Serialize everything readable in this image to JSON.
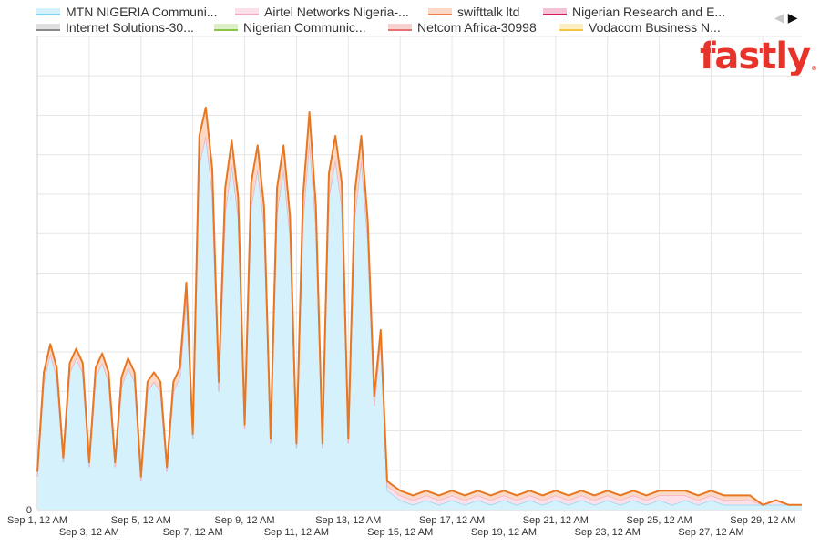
{
  "legend": {
    "items": [
      {
        "label": "MTN NIGERIA Communi...",
        "color": "#7fd4f5",
        "fill": "#d5f1fc"
      },
      {
        "label": "Airtel Networks Nigeria-...",
        "color": "#f4a7c3",
        "fill": "#fbe0ea"
      },
      {
        "label": "swifttalk ltd",
        "color": "#f07d4a",
        "fill": "#fcd9c6"
      },
      {
        "label": "Nigerian Research and E...",
        "color": "#d81b60",
        "fill": "#f5c2d6"
      },
      {
        "label": "Internet Solutions-30...",
        "color": "#8a8a8a",
        "fill": "#e0e0e0"
      },
      {
        "label": "Nigerian Communic...",
        "color": "#8bc34a",
        "fill": "#dcefc6"
      },
      {
        "label": "Netcom Africa-30998",
        "color": "#e57373",
        "fill": "#f8d1d1"
      },
      {
        "label": "Vodacom Business N...",
        "color": "#f4c542",
        "fill": "#fcefc2"
      }
    ],
    "nav_prev_icon": "arrow-left-icon",
    "nav_next_icon": "arrow-right-icon"
  },
  "logo": {
    "text": "fastly",
    "color": "#e8332a",
    "mark": "®"
  },
  "chart_data": {
    "type": "area",
    "stacked": true,
    "x_range": [
      "2023-09-01T00:00",
      "2023-09-30T12:00"
    ],
    "ylim": [
      0,
      1.0
    ],
    "y_tick_labels": [
      "0"
    ],
    "y_gridlines": 12,
    "grid": true,
    "legend_position": "top",
    "x_tick_labels": [
      {
        "date": "2023-09-01T00:00",
        "label": "Sep 1, 12 AM"
      },
      {
        "date": "2023-09-03T00:00",
        "label": "Sep 3, 12 AM"
      },
      {
        "date": "2023-09-05T00:00",
        "label": "Sep 5, 12 AM"
      },
      {
        "date": "2023-09-07T00:00",
        "label": "Sep 7, 12 AM"
      },
      {
        "date": "2023-09-09T00:00",
        "label": "Sep 9, 12 AM"
      },
      {
        "date": "2023-09-11T00:00",
        "label": "Sep 11, 12 AM"
      },
      {
        "date": "2023-09-13T00:00",
        "label": "Sep 13, 12 AM"
      },
      {
        "date": "2023-09-15T00:00",
        "label": "Sep 15, 12 AM"
      },
      {
        "date": "2023-09-17T00:00",
        "label": "Sep 17, 12 AM"
      },
      {
        "date": "2023-09-19T00:00",
        "label": "Sep 19, 12 AM"
      },
      {
        "date": "2023-09-21T00:00",
        "label": "Sep 21, 12 AM"
      },
      {
        "date": "2023-09-23T00:00",
        "label": "Sep 23, 12 AM"
      },
      {
        "date": "2023-09-25T00:00",
        "label": "Sep 25, 12 AM"
      },
      {
        "date": "2023-09-27T00:00",
        "label": "Sep 27, 12 AM"
      },
      {
        "date": "2023-09-29T00:00",
        "label": "Sep 29, 12 AM"
      }
    ],
    "series_total_color": "#e87722",
    "x": [
      "2023-09-01T00:00",
      "2023-09-01T06:00",
      "2023-09-01T12:00",
      "2023-09-01T18:00",
      "2023-09-02T00:00",
      "2023-09-02T06:00",
      "2023-09-02T12:00",
      "2023-09-02T18:00",
      "2023-09-03T00:00",
      "2023-09-03T06:00",
      "2023-09-03T12:00",
      "2023-09-03T18:00",
      "2023-09-04T00:00",
      "2023-09-04T06:00",
      "2023-09-04T12:00",
      "2023-09-04T18:00",
      "2023-09-05T00:00",
      "2023-09-05T06:00",
      "2023-09-05T12:00",
      "2023-09-05T18:00",
      "2023-09-06T00:00",
      "2023-09-06T06:00",
      "2023-09-06T12:00",
      "2023-09-06T18:00",
      "2023-09-07T00:00",
      "2023-09-07T06:00",
      "2023-09-07T12:00",
      "2023-09-07T18:00",
      "2023-09-08T00:00",
      "2023-09-08T06:00",
      "2023-09-08T12:00",
      "2023-09-08T18:00",
      "2023-09-09T00:00",
      "2023-09-09T06:00",
      "2023-09-09T12:00",
      "2023-09-09T18:00",
      "2023-09-10T00:00",
      "2023-09-10T06:00",
      "2023-09-10T12:00",
      "2023-09-10T18:00",
      "2023-09-11T00:00",
      "2023-09-11T06:00",
      "2023-09-11T12:00",
      "2023-09-11T18:00",
      "2023-09-12T00:00",
      "2023-09-12T06:00",
      "2023-09-12T12:00",
      "2023-09-12T18:00",
      "2023-09-13T00:00",
      "2023-09-13T06:00",
      "2023-09-13T12:00",
      "2023-09-13T18:00",
      "2023-09-14T00:00",
      "2023-09-14T06:00",
      "2023-09-14T12:00",
      "2023-09-14T18:00",
      "2023-09-15T00:00",
      "2023-09-15T12:00",
      "2023-09-16T00:00",
      "2023-09-16T12:00",
      "2023-09-17T00:00",
      "2023-09-17T12:00",
      "2023-09-18T00:00",
      "2023-09-18T12:00",
      "2023-09-19T00:00",
      "2023-09-19T12:00",
      "2023-09-20T00:00",
      "2023-09-20T12:00",
      "2023-09-21T00:00",
      "2023-09-21T12:00",
      "2023-09-22T00:00",
      "2023-09-22T12:00",
      "2023-09-23T00:00",
      "2023-09-23T12:00",
      "2023-09-24T00:00",
      "2023-09-24T12:00",
      "2023-09-25T00:00",
      "2023-09-25T12:00",
      "2023-09-26T00:00",
      "2023-09-26T12:00",
      "2023-09-27T00:00",
      "2023-09-27T12:00",
      "2023-09-28T00:00",
      "2023-09-28T12:00",
      "2023-09-29T00:00",
      "2023-09-29T12:00",
      "2023-09-30T00:00",
      "2023-09-30T12:00"
    ],
    "series": [
      {
        "name": "MTN NIGERIA Communi...",
        "values": [
          0.07,
          0.27,
          0.33,
          0.28,
          0.1,
          0.29,
          0.32,
          0.29,
          0.09,
          0.28,
          0.31,
          0.27,
          0.09,
          0.26,
          0.3,
          0.27,
          0.06,
          0.25,
          0.27,
          0.25,
          0.08,
          0.25,
          0.28,
          0.45,
          0.15,
          0.73,
          0.79,
          0.67,
          0.25,
          0.63,
          0.73,
          0.62,
          0.17,
          0.64,
          0.72,
          0.6,
          0.14,
          0.63,
          0.72,
          0.58,
          0.13,
          0.61,
          0.78,
          0.6,
          0.13,
          0.66,
          0.74,
          0.64,
          0.14,
          0.62,
          0.74,
          0.57,
          0.22,
          0.36,
          0.04,
          0.03,
          0.02,
          0.01,
          0.02,
          0.01,
          0.02,
          0.01,
          0.02,
          0.01,
          0.02,
          0.01,
          0.02,
          0.01,
          0.02,
          0.01,
          0.02,
          0.01,
          0.02,
          0.01,
          0.02,
          0.01,
          0.02,
          0.01,
          0.02,
          0.01,
          0.02,
          0.01,
          0.01,
          0.01,
          0.01,
          0.01,
          0.01,
          0.01
        ]
      },
      {
        "name": "Airtel Networks Nigeria-...",
        "values": [
          0.0,
          0.0,
          0.0,
          0.0,
          0.0,
          0.0,
          0.0,
          0.0,
          0.0,
          0.0,
          0.0,
          0.0,
          0.0,
          0.0,
          0.0,
          0.0,
          0.0,
          0.0,
          0.0,
          0.0,
          0.0,
          0.0,
          0.0,
          0.0,
          0.0,
          0.0,
          0.0,
          0.0,
          0.0,
          0.0,
          0.0,
          0.0,
          0.0,
          0.0,
          0.0,
          0.0,
          0.0,
          0.0,
          0.0,
          0.0,
          0.0,
          0.0,
          0.0,
          0.0,
          0.0,
          0.0,
          0.0,
          0.0,
          0.0,
          0.0,
          0.0,
          0.0,
          0.0,
          0.0,
          0.01,
          0.01,
          0.01,
          0.01,
          0.01,
          0.01,
          0.01,
          0.01,
          0.01,
          0.01,
          0.01,
          0.01,
          0.01,
          0.01,
          0.01,
          0.01,
          0.01,
          0.01,
          0.01,
          0.01,
          0.01,
          0.01,
          0.01,
          0.02,
          0.01,
          0.01,
          0.01,
          0.01,
          0.01,
          0.01,
          0.0,
          0.01,
          0.0,
          0.0
        ]
      },
      {
        "name": "swifttalk ltd",
        "values": [
          0.01,
          0.02,
          0.02,
          0.02,
          0.01,
          0.02,
          0.02,
          0.02,
          0.01,
          0.02,
          0.02,
          0.02,
          0.01,
          0.02,
          0.02,
          0.02,
          0.01,
          0.02,
          0.02,
          0.02,
          0.01,
          0.02,
          0.02,
          0.03,
          0.01,
          0.06,
          0.06,
          0.05,
          0.02,
          0.05,
          0.05,
          0.04,
          0.01,
          0.05,
          0.05,
          0.04,
          0.01,
          0.05,
          0.05,
          0.04,
          0.01,
          0.05,
          0.06,
          0.04,
          0.01,
          0.05,
          0.05,
          0.05,
          0.01,
          0.05,
          0.05,
          0.04,
          0.02,
          0.02,
          0.01,
          0.01,
          0.01,
          0.01,
          0.01,
          0.01,
          0.01,
          0.01,
          0.01,
          0.01,
          0.01,
          0.01,
          0.01,
          0.01,
          0.01,
          0.01,
          0.01,
          0.01,
          0.01,
          0.01,
          0.01,
          0.01,
          0.01,
          0.01,
          0.01,
          0.01,
          0.01,
          0.01,
          0.01,
          0.01,
          0.0,
          0.0,
          0.0,
          0.0
        ]
      }
    ]
  }
}
